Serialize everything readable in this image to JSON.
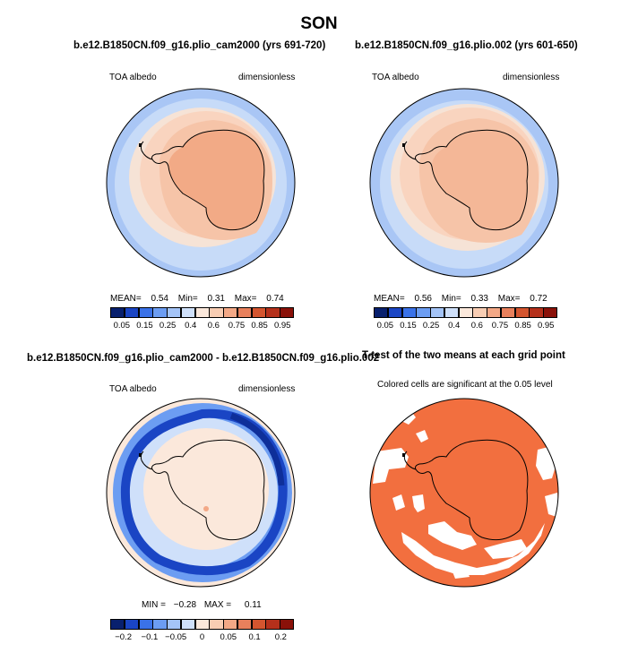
{
  "page": {
    "title": "SON"
  },
  "panels": [
    {
      "title": "b.e12.B1850CN.f09_g16.plio_cam2000 (yrs 691-720)",
      "var_label": "TOA albedo",
      "units_label": "dimensionless",
      "stats": {
        "mean_label": "MEAN=",
        "mean": "0.54",
        "min_label": "Min=",
        "min": "0.31",
        "max_label": "Max=",
        "max": "0.74"
      },
      "colorbar": {
        "colors": [
          "#08206e",
          "#1a45c4",
          "#3a72e8",
          "#6c9df2",
          "#a4c4f7",
          "#cfe0fa",
          "#fbe8db",
          "#f8cdb3",
          "#f3a886",
          "#e8805c",
          "#d4552f",
          "#b5301b",
          "#8a1109"
        ],
        "labels": [
          "0.05",
          "0.15",
          "0.25",
          "0.4",
          "0.6",
          "0.75",
          "0.85",
          "0.95"
        ]
      }
    },
    {
      "title": "b.e12.B1850CN.f09_g16.plio.002 (yrs 601-650)",
      "var_label": "TOA albedo",
      "units_label": "dimensionless",
      "stats": {
        "mean_label": "MEAN=",
        "mean": "0.56",
        "min_label": "Min=",
        "min": "0.33",
        "max_label": "Max=",
        "max": "0.72"
      },
      "colorbar": {
        "colors": [
          "#08206e",
          "#1a45c4",
          "#3a72e8",
          "#6c9df2",
          "#a4c4f7",
          "#cfe0fa",
          "#fbe8db",
          "#f8cdb3",
          "#f3a886",
          "#e8805c",
          "#d4552f",
          "#b5301b",
          "#8a1109"
        ],
        "labels": [
          "0.05",
          "0.15",
          "0.25",
          "0.4",
          "0.6",
          "0.75",
          "0.85",
          "0.95"
        ]
      }
    },
    {
      "title": "b.e12.B1850CN.f09_g16.plio_cam2000 - b.e12.B1850CN.f09_g16.plio.002",
      "var_label": "TOA albedo",
      "units_label": "dimensionless",
      "stats": {
        "min_label": "MIN =",
        "min": "−0.28",
        "max_label": "MAX =",
        "max": "0.11"
      },
      "colorbar": {
        "colors": [
          "#08206e",
          "#1a45c4",
          "#3a72e8",
          "#6c9df2",
          "#a4c4f7",
          "#cfe0fa",
          "#fbe8db",
          "#f8cdb3",
          "#f3a886",
          "#e8805c",
          "#d4552f",
          "#b5301b",
          "#8a1109"
        ],
        "labels": [
          "−0.2",
          "−0.1",
          "−0.05",
          "0",
          "0.05",
          "0.1",
          "0.2"
        ]
      }
    },
    {
      "title": "T-test of the two means at each grid point",
      "subtitle": "Colored cells are significant at the 0.05 level"
    }
  ],
  "chart_data": [
    {
      "type": "heatmap",
      "title": "b.e12.B1850CN.f09_g16.plio_cam2000 (yrs 691-720)",
      "variable": "TOA albedo",
      "units": "dimensionless",
      "season": "SON",
      "projection": "south polar stereographic",
      "mean": 0.54,
      "min": 0.31,
      "max": 0.74,
      "levels": [
        0.05,
        0.1,
        0.15,
        0.2,
        0.25,
        0.3,
        0.4,
        0.5,
        0.6,
        0.7,
        0.75,
        0.8,
        0.85,
        0.9,
        0.95
      ]
    },
    {
      "type": "heatmap",
      "title": "b.e12.B1850CN.f09_g16.plio.002 (yrs 601-650)",
      "variable": "TOA albedo",
      "units": "dimensionless",
      "season": "SON",
      "projection": "south polar stereographic",
      "mean": 0.56,
      "min": 0.33,
      "max": 0.72,
      "levels": [
        0.05,
        0.1,
        0.15,
        0.2,
        0.25,
        0.3,
        0.4,
        0.5,
        0.6,
        0.7,
        0.75,
        0.8,
        0.85,
        0.9,
        0.95
      ]
    },
    {
      "type": "heatmap",
      "title": "b.e12.B1850CN.f09_g16.plio_cam2000 - b.e12.B1850CN.f09_g16.plio.002",
      "variable": "TOA albedo",
      "units": "dimensionless",
      "season": "SON",
      "projection": "south polar stereographic",
      "min": -0.28,
      "max": 0.11,
      "levels": [
        -0.2,
        -0.15,
        -0.1,
        -0.075,
        -0.05,
        -0.025,
        0,
        0.025,
        0.05,
        0.075,
        0.1,
        0.15,
        0.2
      ]
    },
    {
      "type": "heatmap",
      "title": "T-test of the two means at each grid point",
      "note": "Colored cells are significant at the 0.05 level",
      "significance_level": 0.05
    }
  ]
}
